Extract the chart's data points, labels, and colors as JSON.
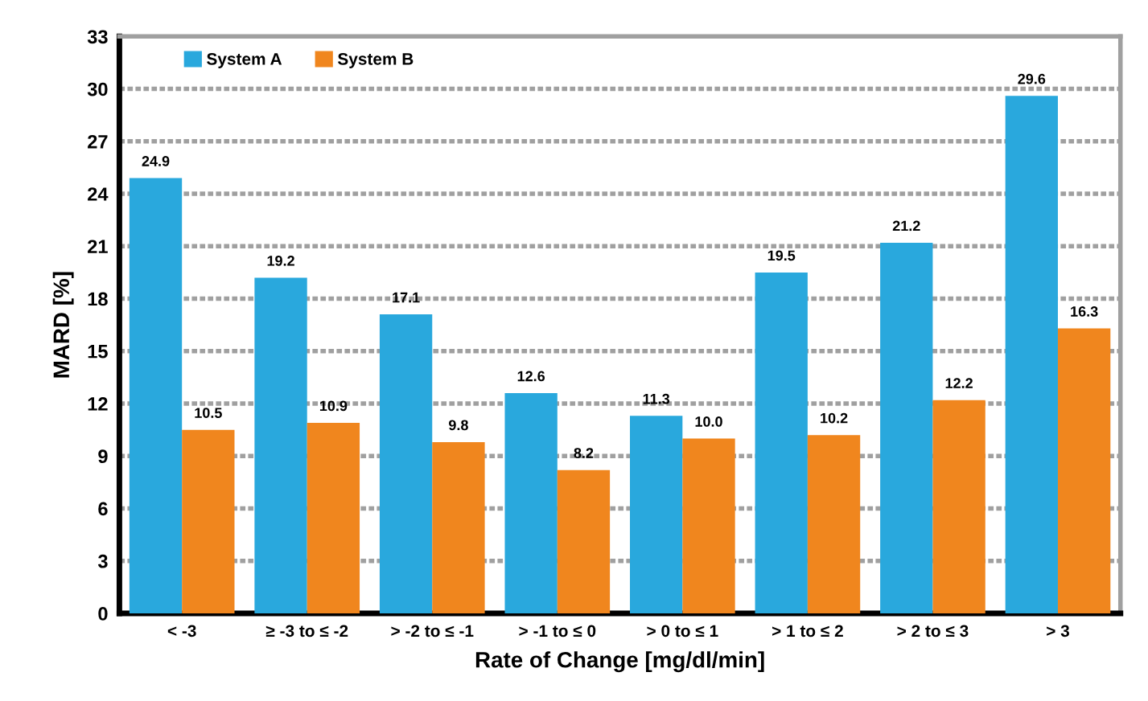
{
  "chart_data": {
    "type": "bar",
    "xlabel": "Rate of Change [mg/dl/min]",
    "ylabel": "MARD [%]",
    "categories": [
      "< -3",
      "≥ -3 to ≤ -2",
      "> -2 to ≤ -1",
      "> -1 to ≤ 0",
      "> 0 to ≤ 1",
      "> 1 to ≤ 2",
      "> 2 to ≤ 3",
      "> 3"
    ],
    "series": [
      {
        "name": "System A",
        "color": "#29a8dd",
        "values": [
          24.9,
          19.2,
          17.1,
          12.6,
          11.3,
          19.5,
          21.2,
          29.6
        ],
        "value_labels": [
          "24.9",
          "19.2",
          "17.1",
          "12.6",
          "11.3",
          "19.5",
          "21.2",
          "29.6"
        ]
      },
      {
        "name": "System B",
        "color": "#f0861e",
        "values": [
          10.5,
          10.9,
          9.8,
          8.2,
          10.0,
          10.2,
          12.2,
          16.3
        ],
        "value_labels": [
          "10.5",
          "10.9",
          "9.8",
          "8.2",
          "10.0",
          "10.2",
          "12.2",
          "16.3"
        ]
      }
    ],
    "ylim": [
      0,
      33
    ],
    "yticks": [
      0,
      3,
      6,
      9,
      12,
      15,
      18,
      21,
      24,
      27,
      30,
      33
    ],
    "grid": "y",
    "legend": "top left"
  }
}
